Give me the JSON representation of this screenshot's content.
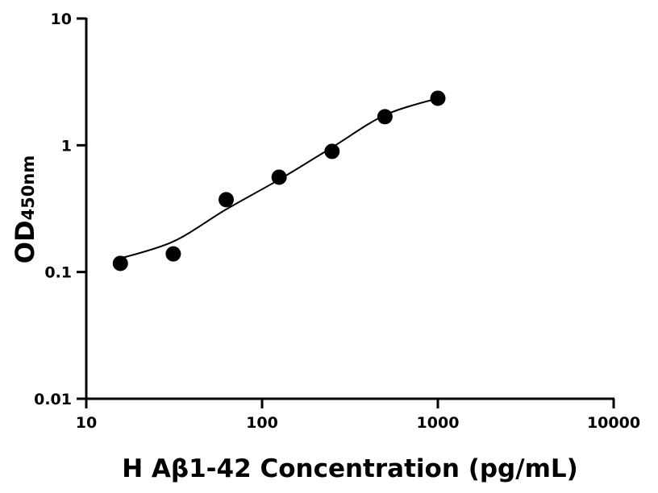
{
  "chart_data": {
    "type": "scatter",
    "title": "",
    "xlabel": "H Aβ1-42 Concentration (pg/mL)",
    "ylabel_main": "OD",
    "ylabel_sub": "450nm",
    "x_scale": "log",
    "y_scale": "log",
    "xlim": [
      10,
      10000
    ],
    "ylim": [
      0.01,
      10
    ],
    "x_ticks": [
      "10",
      "100",
      "1000",
      "10000"
    ],
    "y_ticks": [
      "0.01",
      "0.1",
      "1",
      "10"
    ],
    "grid": false,
    "points": {
      "x": [
        15.625,
        31.25,
        62.5,
        125,
        250,
        500,
        1000
      ],
      "y": [
        0.117,
        0.139,
        0.372,
        0.56,
        0.895,
        1.68,
        2.35
      ]
    },
    "fit_curve": {
      "x": [
        15.625,
        31.25,
        62.5,
        125,
        250,
        500,
        1000
      ],
      "y": [
        0.128,
        0.174,
        0.312,
        0.536,
        0.962,
        1.73,
        2.35
      ]
    },
    "colors": {
      "points": "#000000",
      "curve": "#000000"
    }
  }
}
